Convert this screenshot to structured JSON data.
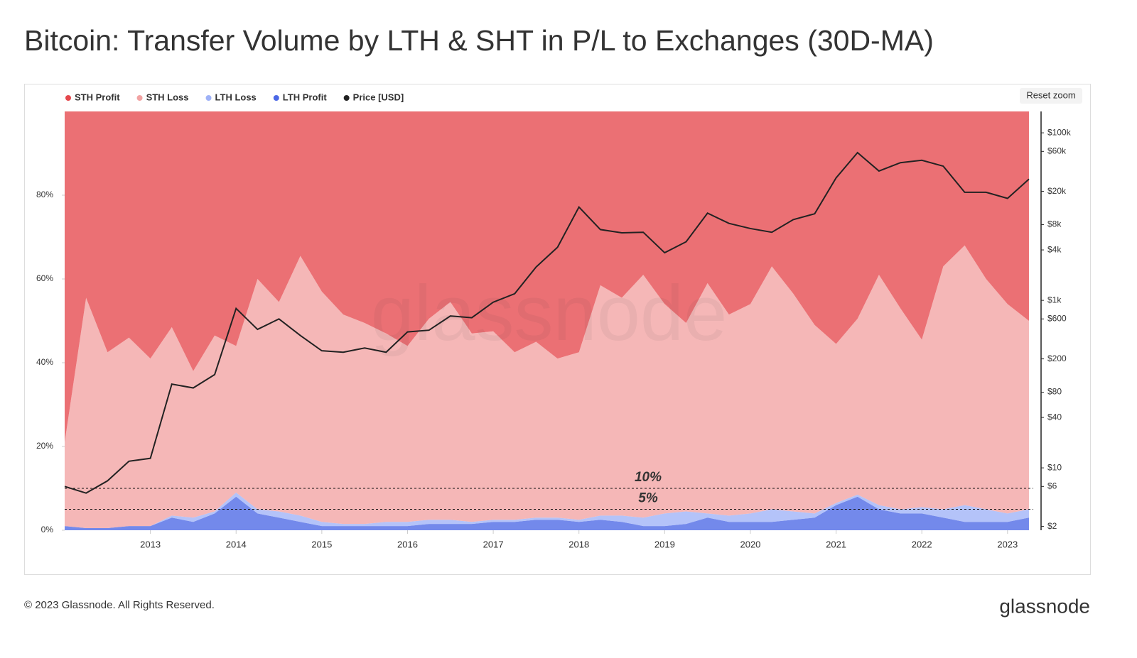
{
  "chart_data": {
    "type": "area",
    "title": "Bitcoin: Transfer Volume by LTH & SHT in P/L to Exchanges (30D-MA)",
    "x": [
      2012.0,
      2012.25,
      2012.5,
      2012.75,
      2013.0,
      2013.25,
      2013.5,
      2013.75,
      2014.0,
      2014.25,
      2014.5,
      2014.75,
      2015.0,
      2015.25,
      2015.5,
      2015.75,
      2016.0,
      2016.25,
      2016.5,
      2016.75,
      2017.0,
      2017.25,
      2017.5,
      2017.75,
      2018.0,
      2018.25,
      2018.5,
      2018.75,
      2019.0,
      2019.25,
      2019.5,
      2019.75,
      2020.0,
      2020.25,
      2020.5,
      2020.75,
      2021.0,
      2021.25,
      2021.5,
      2021.75,
      2022.0,
      2022.25,
      2022.5,
      2022.75,
      2023.0,
      2023.25
    ],
    "series": [
      {
        "name": "STH Profit",
        "color": "#e5484d",
        "values": [
          79,
          44.5,
          57.5,
          54,
          59,
          51.5,
          62,
          53.5,
          56,
          40,
          45.5,
          34.5,
          43,
          48.5,
          50.5,
          53,
          56,
          49.5,
          45.5,
          53,
          52.5,
          57.5,
          55,
          59,
          57.5,
          41.5,
          44.5,
          39,
          46,
          50.5,
          41,
          48.5,
          46,
          37,
          43.5,
          51,
          55.5,
          49.5,
          39,
          47,
          54.5,
          37,
          32,
          40,
          46,
          50
        ]
      },
      {
        "name": "STH Loss",
        "color": "#f2a3a3",
        "values": [
          20,
          55,
          42,
          45,
          40,
          45,
          35,
          42,
          35,
          55,
          50,
          62,
          55,
          50,
          48,
          45,
          42,
          48,
          52,
          45,
          45,
          40,
          42,
          38,
          40,
          55,
          52,
          58,
          50,
          45,
          55,
          48,
          50,
          58,
          52,
          45,
          38,
          42,
          55,
          48,
          40,
          58,
          62,
          55,
          50,
          45
        ]
      },
      {
        "name": "LTH Loss",
        "color": "#9fb2f7",
        "values": [
          0,
          0,
          0,
          0,
          0,
          0.5,
          1,
          0.5,
          1,
          1,
          1.5,
          1.5,
          1,
          0.5,
          0.5,
          1,
          1,
          1,
          1,
          0.5,
          0.5,
          0.5,
          0.5,
          0.5,
          0.5,
          1,
          1.5,
          2,
          3,
          3,
          1,
          1.5,
          2,
          3,
          2,
          1,
          0.5,
          0.5,
          1,
          1,
          1.5,
          2,
          4,
          3,
          2,
          2
        ]
      },
      {
        "name": "LTH Profit",
        "color": "#4c68e6",
        "values": [
          1,
          0.5,
          0.5,
          1,
          1,
          3,
          2,
          4,
          8,
          4,
          3,
          2,
          1,
          1,
          1,
          1,
          1,
          1.5,
          1.5,
          1.5,
          2,
          2,
          2.5,
          2.5,
          2,
          2.5,
          2,
          1,
          1,
          1.5,
          3,
          2,
          2,
          2,
          2.5,
          3,
          6,
          8,
          5,
          4,
          4,
          3,
          2,
          2,
          2,
          3
        ]
      },
      {
        "name": "Price [USD]",
        "color": "#222222",
        "type": "line",
        "axis": "y2",
        "values": [
          6,
          5,
          7,
          12,
          13,
          100,
          90,
          130,
          800,
          450,
          600,
          380,
          250,
          240,
          270,
          240,
          420,
          440,
          650,
          620,
          950,
          1200,
          2500,
          4300,
          13000,
          7000,
          6400,
          6500,
          3700,
          5000,
          11000,
          8300,
          7200,
          6500,
          9200,
          10800,
          29000,
          58000,
          35000,
          44000,
          47000,
          40000,
          19500,
          19500,
          16500,
          28000
        ]
      }
    ],
    "xlim": [
      2012.0,
      2023.3
    ],
    "xticks": [
      2013,
      2014,
      2015,
      2016,
      2017,
      2018,
      2019,
      2020,
      2021,
      2022,
      2023
    ],
    "ylim": [
      0,
      100
    ],
    "yticks": [
      {
        "value": 0,
        "label": "0%"
      },
      {
        "value": 20,
        "label": "20%"
      },
      {
        "value": 40,
        "label": "40%"
      },
      {
        "value": 60,
        "label": "60%"
      },
      {
        "value": 80,
        "label": "80%"
      }
    ],
    "y2lim": [
      1.8,
      180000
    ],
    "y2scale": "log",
    "y2ticks": [
      {
        "value": 2,
        "label": "$2"
      },
      {
        "value": 6,
        "label": "$6"
      },
      {
        "value": 10,
        "label": "$10"
      },
      {
        "value": 40,
        "label": "$40"
      },
      {
        "value": 80,
        "label": "$80"
      },
      {
        "value": 200,
        "label": "$200"
      },
      {
        "value": 600,
        "label": "$600"
      },
      {
        "value": 1000,
        "label": "$1k"
      },
      {
        "value": 4000,
        "label": "$4k"
      },
      {
        "value": 8000,
        "label": "$8k"
      },
      {
        "value": 20000,
        "label": "$20k"
      },
      {
        "value": 60000,
        "label": "$60k"
      },
      {
        "value": 100000,
        "label": "$100k"
      }
    ],
    "annotations": [
      {
        "label": "10%",
        "value": 10
      },
      {
        "label": "5%",
        "value": 5
      }
    ],
    "legend": "top-left"
  },
  "reset_zoom": "Reset zoom",
  "watermark": "glassnode",
  "footer": "© 2023 Glassnode. All Rights Reserved.",
  "brand": "glassnode"
}
